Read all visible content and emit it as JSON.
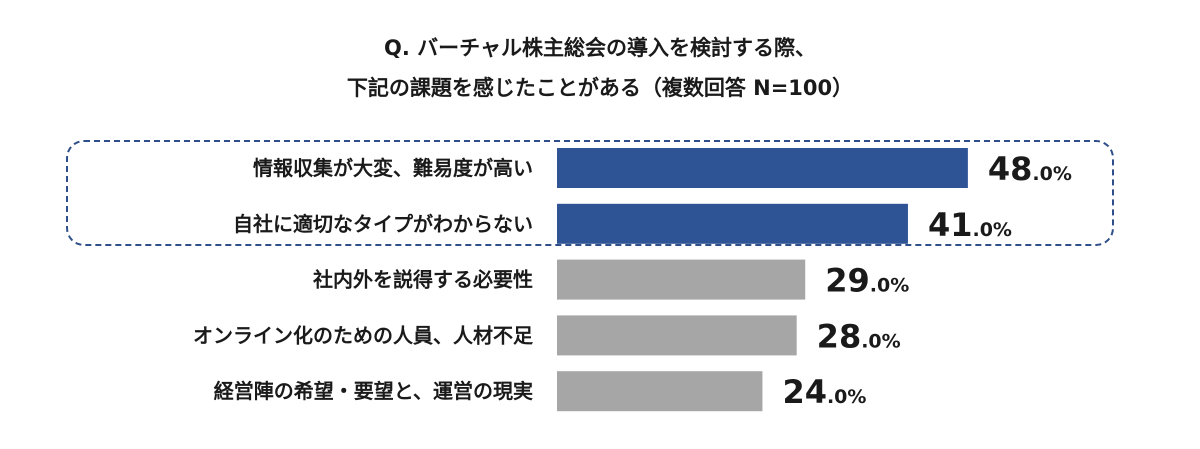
{
  "chart_data": {
    "type": "bar",
    "orientation": "horizontal",
    "title": [
      "Q. バーチャル株主総会の導入を検討する際、",
      "下記の課題を感じたことがある（複数回答 N=100）"
    ],
    "categories": [
      "情報収集が大変、難易度が高い",
      "自社に適切なタイプがわからない",
      "社内外を説得する必要性",
      "オンライン化のための人員、人材不足",
      "経営陣の希望・要望と、運営の現実"
    ],
    "values": [
      48.0,
      41.0,
      29.0,
      28.0,
      24.0
    ],
    "data_labels": [
      [
        "48",
        ".0%"
      ],
      [
        "41",
        ".0%"
      ],
      [
        "29",
        ".0%"
      ],
      [
        "28",
        ".0%"
      ],
      [
        "24",
        ".0%"
      ]
    ],
    "highlighted": [
      true,
      true,
      false,
      false,
      false
    ],
    "colors": {
      "highlight": "#2f5496",
      "normal": "#a6a6a6",
      "box": "#2f4f8a"
    },
    "xlabel": "",
    "ylabel": "",
    "grid": false,
    "axes_visible": false
  }
}
